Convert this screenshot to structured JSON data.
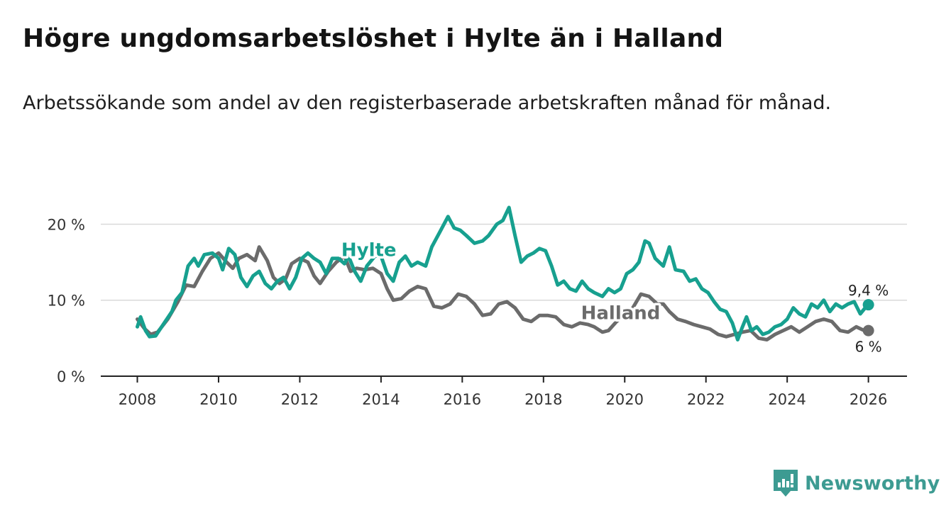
{
  "title": "Högre ungdomsarbetslöshet i Hylte än i Halland",
  "subtitle": "Arbetssökande som andel av den registerbaserade arbetskraften månad för månad.",
  "brand": {
    "name": "Newsworthy",
    "icon": "newsworthy-logo-icon",
    "color": "#3d9b92"
  },
  "chart_data": {
    "type": "line",
    "title": "Högre ungdomsarbetslöshet i Hylte än i Halland",
    "xlabel": "",
    "ylabel": "",
    "xlim": [
      2007.1,
      2026.95
    ],
    "ylim": [
      0,
      22
    ],
    "x_ticks": [
      2008,
      2010,
      2012,
      2014,
      2016,
      2018,
      2020,
      2022,
      2024,
      2026
    ],
    "x_tick_labels": [
      "2008",
      "2010",
      "2012",
      "2014",
      "2016",
      "2018",
      "2020",
      "2022",
      "2024",
      "2026"
    ],
    "y_ticks": [
      0,
      10,
      20
    ],
    "y_tick_labels": [
      "0 %",
      "10 %",
      "20 %"
    ],
    "grid": "horizontal",
    "series": [
      {
        "name": "Halland",
        "color": "#6b6b6b",
        "label": "Halland",
        "end_label": "6 %",
        "points": [
          [
            2008.0,
            7.5
          ],
          [
            2008.17,
            6.3
          ],
          [
            2008.33,
            5.5
          ],
          [
            2008.5,
            5.8
          ],
          [
            2008.75,
            7.5
          ],
          [
            2009.0,
            9.8
          ],
          [
            2009.2,
            12.0
          ],
          [
            2009.4,
            11.8
          ],
          [
            2009.6,
            13.8
          ],
          [
            2009.8,
            15.5
          ],
          [
            2010.0,
            16.2
          ],
          [
            2010.2,
            15.0
          ],
          [
            2010.35,
            14.2
          ],
          [
            2010.5,
            15.5
          ],
          [
            2010.7,
            16.0
          ],
          [
            2010.9,
            15.2
          ],
          [
            2011.0,
            17.0
          ],
          [
            2011.2,
            15.2
          ],
          [
            2011.35,
            13.0
          ],
          [
            2011.5,
            12.2
          ],
          [
            2011.65,
            12.8
          ],
          [
            2011.8,
            14.8
          ],
          [
            2012.0,
            15.5
          ],
          [
            2012.2,
            15.0
          ],
          [
            2012.35,
            13.2
          ],
          [
            2012.5,
            12.2
          ],
          [
            2012.7,
            13.8
          ],
          [
            2012.9,
            15.0
          ],
          [
            2013.1,
            15.8
          ],
          [
            2013.25,
            13.8
          ],
          [
            2013.4,
            14.2
          ],
          [
            2013.6,
            14.0
          ],
          [
            2013.8,
            14.2
          ],
          [
            2014.0,
            13.5
          ],
          [
            2014.15,
            11.5
          ],
          [
            2014.3,
            10.0
          ],
          [
            2014.5,
            10.2
          ],
          [
            2014.7,
            11.2
          ],
          [
            2014.9,
            11.8
          ],
          [
            2015.1,
            11.5
          ],
          [
            2015.3,
            9.2
          ],
          [
            2015.5,
            9.0
          ],
          [
            2015.7,
            9.5
          ],
          [
            2015.9,
            10.8
          ],
          [
            2016.1,
            10.5
          ],
          [
            2016.3,
            9.5
          ],
          [
            2016.5,
            8.0
          ],
          [
            2016.7,
            8.2
          ],
          [
            2016.9,
            9.5
          ],
          [
            2017.1,
            9.8
          ],
          [
            2017.3,
            9.0
          ],
          [
            2017.5,
            7.5
          ],
          [
            2017.7,
            7.2
          ],
          [
            2017.9,
            8.0
          ],
          [
            2018.1,
            8.0
          ],
          [
            2018.3,
            7.8
          ],
          [
            2018.5,
            6.8
          ],
          [
            2018.7,
            6.5
          ],
          [
            2018.9,
            7.0
          ],
          [
            2019.1,
            6.8
          ],
          [
            2019.25,
            6.5
          ],
          [
            2019.45,
            5.8
          ],
          [
            2019.6,
            6.0
          ],
          [
            2019.8,
            7.2
          ],
          [
            2020.0,
            8.0
          ],
          [
            2020.2,
            9.0
          ],
          [
            2020.4,
            10.8
          ],
          [
            2020.6,
            10.5
          ],
          [
            2020.8,
            9.5
          ],
          [
            2020.95,
            9.5
          ],
          [
            2021.1,
            8.5
          ],
          [
            2021.3,
            7.5
          ],
          [
            2021.5,
            7.2
          ],
          [
            2021.7,
            6.8
          ],
          [
            2021.9,
            6.5
          ],
          [
            2022.1,
            6.2
          ],
          [
            2022.3,
            5.5
          ],
          [
            2022.5,
            5.2
          ],
          [
            2022.7,
            5.5
          ],
          [
            2022.9,
            5.8
          ],
          [
            2023.1,
            6.0
          ],
          [
            2023.3,
            5.0
          ],
          [
            2023.5,
            4.8
          ],
          [
            2023.7,
            5.5
          ],
          [
            2023.9,
            6.0
          ],
          [
            2024.1,
            6.5
          ],
          [
            2024.3,
            5.8
          ],
          [
            2024.5,
            6.5
          ],
          [
            2024.7,
            7.2
          ],
          [
            2024.9,
            7.5
          ],
          [
            2025.1,
            7.2
          ],
          [
            2025.3,
            6.0
          ],
          [
            2025.5,
            5.8
          ],
          [
            2025.7,
            6.5
          ],
          [
            2025.9,
            6.0
          ],
          [
            2026.0,
            6.0
          ]
        ]
      },
      {
        "name": "Hylte",
        "color": "#17a08f",
        "label": "Hylte",
        "end_label": "9,4 %",
        "points": [
          [
            2008.0,
            6.5
          ],
          [
            2008.08,
            7.8
          ],
          [
            2008.2,
            6.0
          ],
          [
            2008.3,
            5.2
          ],
          [
            2008.45,
            5.3
          ],
          [
            2008.6,
            6.5
          ],
          [
            2008.85,
            8.5
          ],
          [
            2008.95,
            10.0
          ],
          [
            2009.1,
            11.0
          ],
          [
            2009.25,
            14.5
          ],
          [
            2009.4,
            15.5
          ],
          [
            2009.5,
            14.5
          ],
          [
            2009.65,
            16.0
          ],
          [
            2009.85,
            16.2
          ],
          [
            2010.0,
            15.5
          ],
          [
            2010.1,
            14.0
          ],
          [
            2010.25,
            16.8
          ],
          [
            2010.4,
            16.0
          ],
          [
            2010.55,
            13.0
          ],
          [
            2010.7,
            11.8
          ],
          [
            2010.85,
            13.2
          ],
          [
            2011.0,
            13.8
          ],
          [
            2011.15,
            12.2
          ],
          [
            2011.3,
            11.5
          ],
          [
            2011.45,
            12.5
          ],
          [
            2011.6,
            13.0
          ],
          [
            2011.75,
            11.5
          ],
          [
            2011.9,
            13.0
          ],
          [
            2012.05,
            15.5
          ],
          [
            2012.2,
            16.2
          ],
          [
            2012.35,
            15.5
          ],
          [
            2012.5,
            15.0
          ],
          [
            2012.65,
            13.5
          ],
          [
            2012.8,
            15.5
          ],
          [
            2012.95,
            15.5
          ],
          [
            2013.1,
            14.8
          ],
          [
            2013.2,
            15.8
          ],
          [
            2013.35,
            13.8
          ],
          [
            2013.5,
            12.5
          ],
          [
            2013.65,
            14.5
          ],
          [
            2013.85,
            15.8
          ],
          [
            2014.0,
            15.8
          ],
          [
            2014.15,
            13.5
          ],
          [
            2014.3,
            12.5
          ],
          [
            2014.45,
            15.0
          ],
          [
            2014.6,
            15.8
          ],
          [
            2014.75,
            14.5
          ],
          [
            2014.9,
            15.0
          ],
          [
            2015.1,
            14.5
          ],
          [
            2015.25,
            17.0
          ],
          [
            2015.45,
            19.0
          ],
          [
            2015.65,
            21.0
          ],
          [
            2015.8,
            19.5
          ],
          [
            2015.95,
            19.2
          ],
          [
            2016.1,
            18.5
          ],
          [
            2016.3,
            17.5
          ],
          [
            2016.5,
            17.8
          ],
          [
            2016.65,
            18.5
          ],
          [
            2016.85,
            20.0
          ],
          [
            2017.0,
            20.5
          ],
          [
            2017.15,
            22.2
          ],
          [
            2017.3,
            18.5
          ],
          [
            2017.45,
            15.0
          ],
          [
            2017.6,
            15.8
          ],
          [
            2017.75,
            16.2
          ],
          [
            2017.9,
            16.8
          ],
          [
            2018.05,
            16.5
          ],
          [
            2018.2,
            14.5
          ],
          [
            2018.35,
            12.0
          ],
          [
            2018.5,
            12.5
          ],
          [
            2018.65,
            11.5
          ],
          [
            2018.8,
            11.2
          ],
          [
            2018.95,
            12.5
          ],
          [
            2019.1,
            11.5
          ],
          [
            2019.25,
            11.0
          ],
          [
            2019.45,
            10.5
          ],
          [
            2019.6,
            11.5
          ],
          [
            2019.75,
            11.0
          ],
          [
            2019.9,
            11.5
          ],
          [
            2020.05,
            13.5
          ],
          [
            2020.2,
            14.0
          ],
          [
            2020.35,
            15.0
          ],
          [
            2020.5,
            17.8
          ],
          [
            2020.6,
            17.5
          ],
          [
            2020.75,
            15.5
          ],
          [
            2020.95,
            14.5
          ],
          [
            2021.1,
            17.0
          ],
          [
            2021.25,
            14.0
          ],
          [
            2021.45,
            13.8
          ],
          [
            2021.6,
            12.5
          ],
          [
            2021.75,
            12.8
          ],
          [
            2021.9,
            11.5
          ],
          [
            2022.05,
            11.0
          ],
          [
            2022.2,
            9.8
          ],
          [
            2022.35,
            8.8
          ],
          [
            2022.5,
            8.5
          ],
          [
            2022.65,
            7.0
          ],
          [
            2022.78,
            4.8
          ],
          [
            2022.9,
            6.5
          ],
          [
            2023.0,
            7.8
          ],
          [
            2023.12,
            6.0
          ],
          [
            2023.25,
            6.5
          ],
          [
            2023.4,
            5.5
          ],
          [
            2023.55,
            5.8
          ],
          [
            2023.7,
            6.5
          ],
          [
            2023.85,
            6.8
          ],
          [
            2024.0,
            7.5
          ],
          [
            2024.15,
            9.0
          ],
          [
            2024.3,
            8.2
          ],
          [
            2024.45,
            7.8
          ],
          [
            2024.6,
            9.5
          ],
          [
            2024.75,
            9.0
          ],
          [
            2024.9,
            10.0
          ],
          [
            2025.05,
            8.5
          ],
          [
            2025.2,
            9.5
          ],
          [
            2025.35,
            9.0
          ],
          [
            2025.5,
            9.5
          ],
          [
            2025.65,
            9.8
          ],
          [
            2025.8,
            8.2
          ],
          [
            2025.92,
            9.0
          ],
          [
            2026.0,
            9.4
          ]
        ]
      }
    ]
  }
}
